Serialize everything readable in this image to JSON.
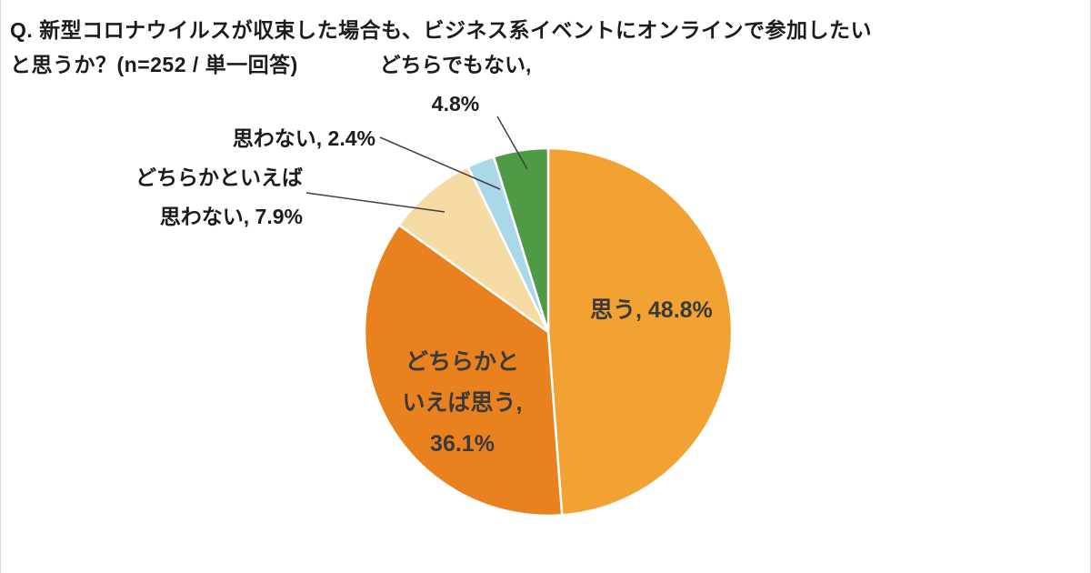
{
  "title": {
    "line1": "Q. 新型コロナウイルスが収束した場合も、ビジネス系イベントにオンラインで参加したい",
    "line2": "と思うか？(n=252 / 単一回答)"
  },
  "chart_data": {
    "type": "pie",
    "title": "Q. 新型コロナウイルスが収束した場合も、ビジネス系イベントにオンラインで参加したいと思うか？",
    "sample_note": "n=252 / 単一回答",
    "unit": "%",
    "direction": "clockwise",
    "start_angle_deg": 0,
    "legend_position": "none",
    "slices": [
      {
        "label": "思う",
        "value": 48.8,
        "color": "#F2A233",
        "label_placement": "inside"
      },
      {
        "label": "どちらかといえば思う",
        "value": 36.1,
        "color": "#E8811E",
        "label_placement": "inside"
      },
      {
        "label": "どちらかといえば思わない",
        "value": 7.9,
        "color": "#F6DCA4",
        "label_placement": "outside"
      },
      {
        "label": "思わない",
        "value": 2.4,
        "color": "#A9D9E8",
        "label_placement": "outside"
      },
      {
        "label": "どちらでもない",
        "value": 4.8,
        "color": "#4F9B45",
        "label_placement": "outside"
      }
    ]
  },
  "labels": {
    "agree": {
      "text": "思う, 48.8%"
    },
    "somewhat_agree": {
      "line1": "どちらかと",
      "line2": "いえば思う,",
      "line3": "36.1%"
    },
    "somewhat_disagree": {
      "line1": "どちらかといえば",
      "line2": "思わない, 7.9%"
    },
    "disagree": {
      "text": "思わない, 2.4%"
    },
    "neither": {
      "line1": "どちらでもない,",
      "line2": "4.8%"
    }
  }
}
